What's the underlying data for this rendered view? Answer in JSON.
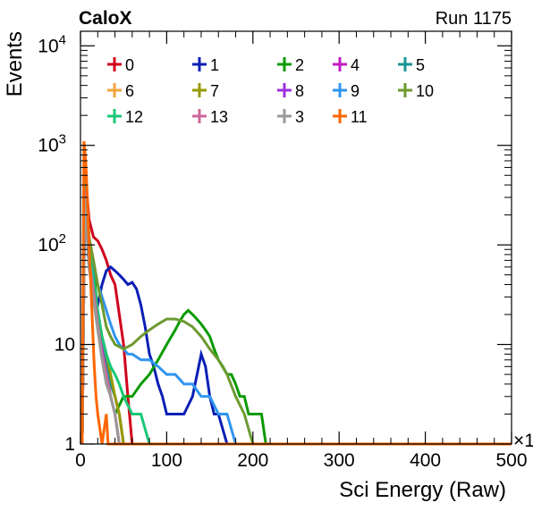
{
  "chart_data": {
    "type": "line",
    "title_left": "CaloX",
    "title_right": "Run 1175",
    "xlabel": "Sci Energy (Raw)",
    "ylabel": "Events",
    "x_multiplier_label": "×1",
    "xlim": [
      0,
      500
    ],
    "ylim": [
      1,
      14000
    ],
    "y_scale": "log",
    "x_ticks": [
      "0",
      "100",
      "200",
      "300",
      "400",
      "500"
    ],
    "y_ticks": [
      {
        "value": 1,
        "label": "1"
      },
      {
        "value": 10,
        "label": "10"
      },
      {
        "value": 100,
        "label": "10",
        "exp": "2"
      },
      {
        "value": 1000,
        "label": "10",
        "exp": "3"
      },
      {
        "value": 10000,
        "label": "10",
        "exp": "4"
      }
    ],
    "legend_placement": "top",
    "series": [
      {
        "name": "0",
        "color": "#d0021b",
        "values": [
          [
            2,
            1
          ],
          [
            5,
            600
          ],
          [
            10,
            180
          ],
          [
            15,
            120
          ],
          [
            20,
            110
          ],
          [
            25,
            90
          ],
          [
            30,
            70
          ],
          [
            35,
            50
          ],
          [
            40,
            40
          ],
          [
            45,
            20
          ],
          [
            50,
            10
          ],
          [
            55,
            3
          ],
          [
            60,
            1
          ]
        ]
      },
      {
        "name": "1",
        "color": "#0b1fb5",
        "values": [
          [
            2,
            1
          ],
          [
            5,
            300
          ],
          [
            10,
            60
          ],
          [
            15,
            30
          ],
          [
            20,
            25
          ],
          [
            25,
            40
          ],
          [
            30,
            55
          ],
          [
            35,
            60
          ],
          [
            40,
            55
          ],
          [
            45,
            50
          ],
          [
            50,
            45
          ],
          [
            55,
            40
          ],
          [
            60,
            42
          ],
          [
            65,
            36
          ],
          [
            70,
            25
          ],
          [
            75,
            15
          ],
          [
            80,
            8
          ],
          [
            85,
            6
          ],
          [
            90,
            4
          ],
          [
            95,
            3
          ],
          [
            100,
            2
          ],
          [
            110,
            2
          ],
          [
            120,
            2
          ],
          [
            130,
            3
          ],
          [
            140,
            8
          ],
          [
            145,
            6
          ],
          [
            150,
            3
          ],
          [
            155,
            2
          ],
          [
            160,
            2
          ],
          [
            170,
            1
          ]
        ]
      },
      {
        "name": "2",
        "color": "#0a9a00",
        "values": [
          [
            2,
            1
          ],
          [
            5,
            500
          ],
          [
            10,
            120
          ],
          [
            15,
            60
          ],
          [
            20,
            20
          ],
          [
            25,
            10
          ],
          [
            30,
            5
          ],
          [
            35,
            3
          ],
          [
            40,
            2
          ],
          [
            50,
            3
          ],
          [
            60,
            3
          ],
          [
            70,
            4
          ],
          [
            80,
            5
          ],
          [
            90,
            7
          ],
          [
            100,
            10
          ],
          [
            110,
            14
          ],
          [
            115,
            17
          ],
          [
            120,
            20
          ],
          [
            125,
            22
          ],
          [
            130,
            20
          ],
          [
            135,
            18
          ],
          [
            140,
            16
          ],
          [
            145,
            14
          ],
          [
            150,
            12
          ],
          [
            155,
            9
          ],
          [
            160,
            7
          ],
          [
            165,
            6
          ],
          [
            170,
            5
          ],
          [
            175,
            5
          ],
          [
            180,
            4
          ],
          [
            185,
            3
          ],
          [
            190,
            3
          ],
          [
            195,
            2
          ],
          [
            200,
            2
          ],
          [
            210,
            2
          ],
          [
            215,
            1
          ],
          [
            220,
            1
          ]
        ]
      },
      {
        "name": "4",
        "color": "#c21bc2",
        "values": [
          [
            2,
            1
          ],
          [
            5,
            400
          ],
          [
            10,
            80
          ],
          [
            15,
            40
          ],
          [
            20,
            20
          ],
          [
            25,
            10
          ],
          [
            30,
            6
          ],
          [
            35,
            4
          ],
          [
            40,
            3
          ],
          [
            45,
            2
          ],
          [
            50,
            1
          ]
        ]
      },
      {
        "name": "5",
        "color": "#189494",
        "values": [
          [
            2,
            1
          ],
          [
            5,
            350
          ],
          [
            10,
            70
          ],
          [
            15,
            35
          ],
          [
            20,
            18
          ],
          [
            25,
            10
          ],
          [
            30,
            6
          ],
          [
            35,
            4
          ],
          [
            40,
            3
          ],
          [
            45,
            2
          ],
          [
            50,
            1
          ]
        ]
      },
      {
        "name": "6",
        "color": "#f2a23c",
        "values": [
          [
            2,
            1
          ],
          [
            5,
            450
          ],
          [
            10,
            90
          ],
          [
            15,
            40
          ],
          [
            20,
            18
          ],
          [
            25,
            9
          ],
          [
            30,
            5
          ],
          [
            35,
            3
          ],
          [
            40,
            2
          ],
          [
            45,
            1
          ]
        ]
      },
      {
        "name": "7",
        "color": "#999900",
        "values": [
          [
            2,
            1
          ],
          [
            5,
            380
          ],
          [
            10,
            75
          ],
          [
            15,
            38
          ],
          [
            20,
            20
          ],
          [
            25,
            12
          ],
          [
            30,
            8
          ],
          [
            35,
            5
          ],
          [
            40,
            3
          ],
          [
            45,
            2
          ],
          [
            50,
            1
          ]
        ]
      },
      {
        "name": "8",
        "color": "#9b30e0",
        "values": [
          [
            2,
            1
          ],
          [
            5,
            320
          ],
          [
            10,
            60
          ],
          [
            15,
            30
          ],
          [
            20,
            16
          ],
          [
            25,
            9
          ],
          [
            30,
            5
          ],
          [
            35,
            3
          ],
          [
            40,
            2
          ],
          [
            45,
            1
          ]
        ]
      },
      {
        "name": "9",
        "color": "#2f95f0",
        "values": [
          [
            2,
            1
          ],
          [
            5,
            400
          ],
          [
            10,
            100
          ],
          [
            15,
            60
          ],
          [
            20,
            40
          ],
          [
            25,
            30
          ],
          [
            30,
            22
          ],
          [
            35,
            16
          ],
          [
            40,
            12
          ],
          [
            45,
            10
          ],
          [
            50,
            9
          ],
          [
            55,
            8
          ],
          [
            60,
            8
          ],
          [
            70,
            7
          ],
          [
            80,
            7
          ],
          [
            90,
            6
          ],
          [
            100,
            5
          ],
          [
            110,
            5
          ],
          [
            120,
            4
          ],
          [
            130,
            4
          ],
          [
            140,
            3
          ],
          [
            150,
            3
          ],
          [
            160,
            2
          ],
          [
            170,
            2
          ],
          [
            180,
            1
          ]
        ]
      },
      {
        "name": "10",
        "color": "#6c9a30",
        "values": [
          [
            2,
            1
          ],
          [
            5,
            450
          ],
          [
            10,
            120
          ],
          [
            15,
            70
          ],
          [
            20,
            40
          ],
          [
            25,
            25
          ],
          [
            30,
            15
          ],
          [
            35,
            12
          ],
          [
            40,
            10
          ],
          [
            50,
            9
          ],
          [
            60,
            10
          ],
          [
            70,
            12
          ],
          [
            80,
            14
          ],
          [
            90,
            16
          ],
          [
            100,
            18
          ],
          [
            110,
            18
          ],
          [
            120,
            17
          ],
          [
            130,
            15
          ],
          [
            140,
            12
          ],
          [
            150,
            9
          ],
          [
            160,
            7
          ],
          [
            170,
            5
          ],
          [
            180,
            3
          ],
          [
            190,
            2
          ],
          [
            200,
            1
          ]
        ]
      },
      {
        "name": "12",
        "color": "#1ac776",
        "values": [
          [
            2,
            1
          ],
          [
            5,
            420
          ],
          [
            10,
            90
          ],
          [
            15,
            45
          ],
          [
            20,
            22
          ],
          [
            25,
            12
          ],
          [
            30,
            8
          ],
          [
            35,
            6
          ],
          [
            40,
            5
          ],
          [
            45,
            4
          ],
          [
            50,
            3
          ],
          [
            60,
            2
          ],
          [
            70,
            2
          ],
          [
            80,
            1
          ]
        ]
      },
      {
        "name": "13",
        "color": "#cc6699",
        "values": [
          [
            2,
            1
          ],
          [
            5,
            360
          ],
          [
            10,
            70
          ],
          [
            15,
            35
          ],
          [
            20,
            16
          ],
          [
            25,
            8
          ],
          [
            30,
            5
          ],
          [
            35,
            3
          ],
          [
            40,
            2
          ],
          [
            45,
            1
          ]
        ]
      },
      {
        "name": "3",
        "color": "#999999",
        "values": [
          [
            2,
            1
          ],
          [
            5,
            300
          ],
          [
            10,
            60
          ],
          [
            15,
            28
          ],
          [
            20,
            14
          ],
          [
            25,
            7
          ],
          [
            30,
            4
          ],
          [
            35,
            3
          ],
          [
            40,
            2
          ],
          [
            45,
            1
          ]
        ]
      },
      {
        "name": "11",
        "color": "#ff6600",
        "values": [
          [
            2,
            1
          ],
          [
            4,
            1100
          ],
          [
            6,
            700
          ],
          [
            8,
            300
          ],
          [
            10,
            100
          ],
          [
            12,
            40
          ],
          [
            14,
            15
          ],
          [
            16,
            6
          ],
          [
            18,
            3
          ],
          [
            20,
            2
          ],
          [
            25,
            1
          ],
          [
            30,
            2
          ],
          [
            32,
            1
          ],
          [
            500,
            1
          ]
        ]
      }
    ]
  }
}
